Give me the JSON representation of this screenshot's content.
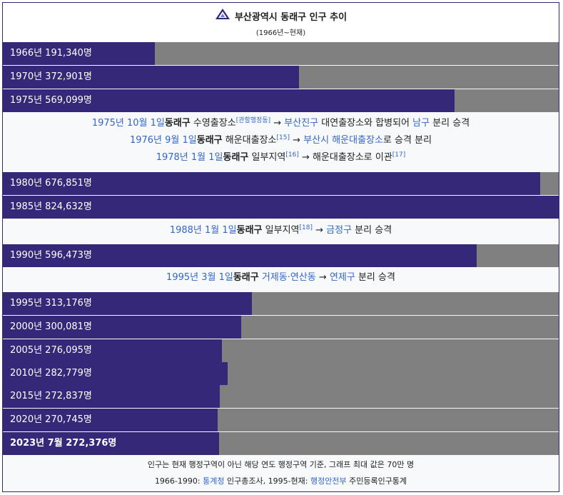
{
  "title": "부산광역시 동래구 인구 추이",
  "subtitle": "(1966년~현재)",
  "colors": {
    "fill": "#362879",
    "empty": "#808080",
    "link": "#3366cc"
  },
  "chart_max": 700000,
  "bars": [
    {
      "label": "1966년 191,340명",
      "value": 191340
    },
    {
      "label": "1970년 372,901명",
      "value": 372901
    },
    {
      "label": "1975년 569,099명",
      "value": 569099
    },
    {
      "label": "1980년 676,851명",
      "value": 676851
    },
    {
      "label": "1985년 824,632명",
      "value": 824632
    },
    {
      "label": "1990년 596,473명",
      "value": 596473
    },
    {
      "label": "1995년 313,176명",
      "value": 313176
    },
    {
      "label": "2000년 300,081명",
      "value": 300081
    },
    {
      "label": "2005년 276,095명",
      "value": 276095
    },
    {
      "label": "2010년 282,779명",
      "value": 282779
    },
    {
      "label": "2015년 272,837명",
      "value": 272837
    },
    {
      "label": "2020년 270,745명",
      "value": 270745
    },
    {
      "label": "2023년 7월 272,376명",
      "value": 272376
    }
  ],
  "notes": {
    "n1975": {
      "date": "1975년 10월 1일",
      "district": "동래구",
      "office": " 수영출장소",
      "ref": "[관할행정동]",
      "arrow": " → ",
      "target": "부산진구",
      "mid": " 대연출장소와 합병되어 ",
      "target2": "남구",
      "tail": " 분리 승격"
    },
    "n1976": {
      "date": "1976년 9월 1일",
      "district": "동래구",
      "office": " 해운대출장소",
      "ref": "[15]",
      "arrow": " → ",
      "target": "부산시 해운대출장소",
      "tail": "로 승격 분리"
    },
    "n1978": {
      "date": "1978년 1월 1일",
      "district": "동래구",
      "office": " 일부지역",
      "ref": "[16]",
      "arrow": " → ",
      "tail": "해운대출장소로 이관",
      "ref2": "[17]"
    },
    "n1988": {
      "date": "1988년 1월 1일",
      "district": "동래구",
      "office": " 일부지역",
      "ref": "[18]",
      "arrow": " → ",
      "target": "금정구",
      "tail": " 분리 승격"
    },
    "n1995": {
      "date": "1995년 3월 1일",
      "district": "동래구",
      "space": " ",
      "area": "거제동·연산동",
      "arrow": " → ",
      "target": "연제구",
      "tail": " 분리 승격"
    }
  },
  "footer": {
    "line1": "인구는 현재 행정구역이 아닌 해당 연도 행정구역 기준, 그래프 최대 값은 70만 명",
    "line2_a": "1966-1990: ",
    "line2_link1": "통계청",
    "line2_b": " 인구총조사, 1995-현재: ",
    "line2_link2": "행정안전부",
    "line2_c": " 주민등록인구통계"
  }
}
